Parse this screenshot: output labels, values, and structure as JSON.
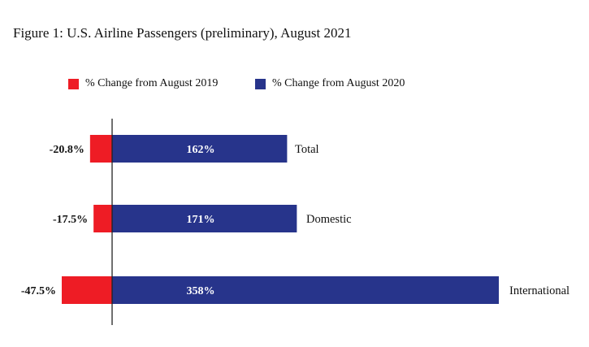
{
  "chart_data": {
    "type": "bar",
    "orientation": "horizontal",
    "title": "Figure 1: U.S. Airline Passengers (preliminary), August 2021",
    "categories": [
      "Total",
      "Domestic",
      "International"
    ],
    "series": [
      {
        "name": "% Change from August 2019",
        "values": [
          -20.8,
          -17.5,
          -47.5
        ],
        "labels": [
          "-20.8%",
          "-17.5%",
          "-47.5%"
        ],
        "color": "#ee1c25"
      },
      {
        "name": "% Change from August 2020",
        "values": [
          162,
          171,
          358
        ],
        "labels": [
          "162%",
          "171%",
          "358%"
        ],
        "color": "#27348b"
      }
    ],
    "xlabel": "",
    "ylabel": "",
    "grid": false,
    "legend_position": "top"
  }
}
